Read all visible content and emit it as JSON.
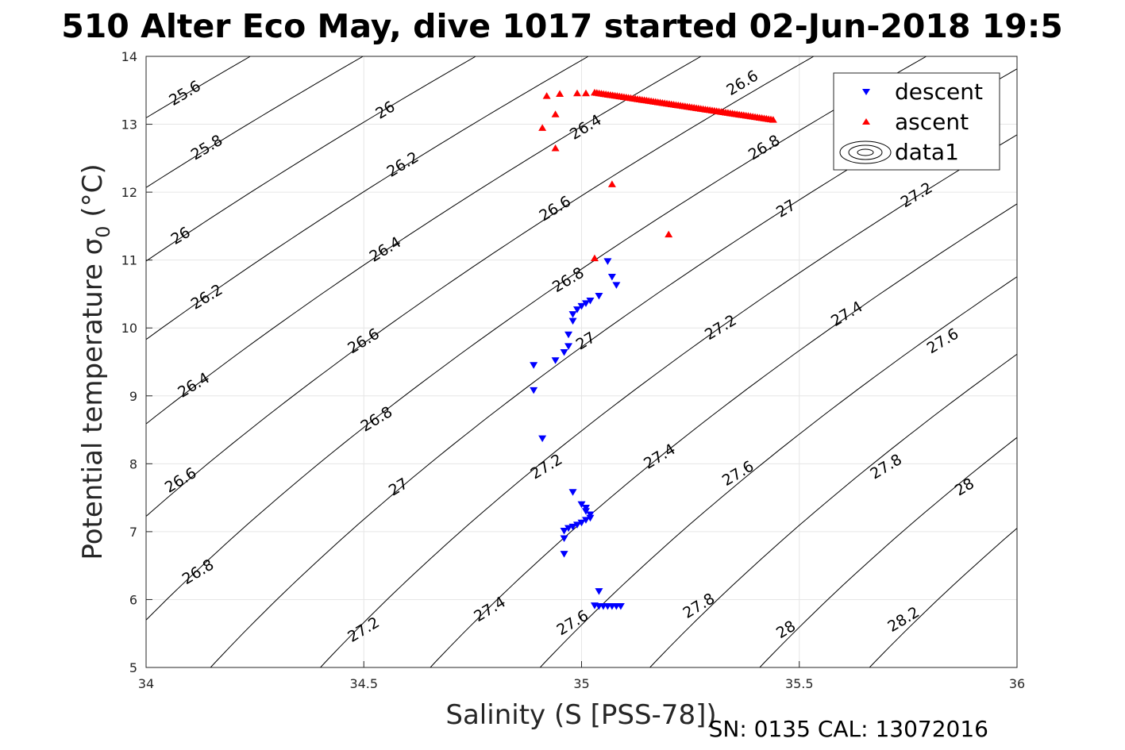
{
  "chart_data": {
    "type": "scatter",
    "title": "510 Alter Eco May, dive 1017 started 02-Jun-2018 19:5",
    "xlabel": "Salinity (S [PSS-78])",
    "ylabel": "Potential temperature σ₀ (°C)",
    "ylabel_main": "Potential temperature σ",
    "ylabel_sub": "0",
    "ylabel_unit": " (°C)",
    "xlim": [
      34,
      36
    ],
    "ylim": [
      5,
      14
    ],
    "x_ticks": [
      34,
      34.5,
      35,
      35.5,
      36
    ],
    "x_tick_labels": [
      "34",
      "34.5",
      "35",
      "35.5",
      "36"
    ],
    "y_ticks": [
      5,
      6,
      7,
      8,
      9,
      10,
      11,
      12,
      13,
      14
    ],
    "y_tick_labels": [
      "5",
      "6",
      "7",
      "8",
      "9",
      "10",
      "11",
      "12",
      "13",
      "14"
    ],
    "grid": true,
    "legend_position": "top-right",
    "footer": "SN: 0135  CAL: 13072016",
    "series": [
      {
        "name": "descent",
        "marker": "triangle-down",
        "color": "#0000ff",
        "points": [
          [
            35.06,
            10.98
          ],
          [
            35.07,
            10.75
          ],
          [
            35.08,
            10.63
          ],
          [
            35.04,
            10.47
          ],
          [
            35.02,
            10.4
          ],
          [
            35.01,
            10.36
          ],
          [
            35.0,
            10.32
          ],
          [
            34.99,
            10.27
          ],
          [
            34.98,
            10.2
          ],
          [
            34.98,
            10.1
          ],
          [
            34.97,
            9.9
          ],
          [
            34.97,
            9.73
          ],
          [
            34.96,
            9.64
          ],
          [
            34.94,
            9.52
          ],
          [
            34.89,
            9.45
          ],
          [
            34.89,
            9.08
          ],
          [
            34.91,
            8.37
          ],
          [
            34.98,
            7.58
          ],
          [
            35.0,
            7.4
          ],
          [
            35.01,
            7.35
          ],
          [
            35.01,
            7.3
          ],
          [
            35.02,
            7.25
          ],
          [
            35.02,
            7.2
          ],
          [
            35.01,
            7.17
          ],
          [
            35.0,
            7.13
          ],
          [
            34.99,
            7.1
          ],
          [
            34.98,
            7.07
          ],
          [
            34.97,
            7.05
          ],
          [
            34.96,
            7.01
          ],
          [
            34.96,
            6.9
          ],
          [
            34.96,
            6.67
          ],
          [
            35.04,
            6.12
          ],
          [
            35.03,
            5.91
          ],
          [
            35.04,
            5.9
          ],
          [
            35.05,
            5.9
          ],
          [
            35.06,
            5.9
          ],
          [
            35.07,
            5.9
          ],
          [
            35.08,
            5.9
          ],
          [
            35.09,
            5.9
          ]
        ]
      },
      {
        "name": "ascent",
        "marker": "triangle-up",
        "color": "#ff0000",
        "points": [
          [
            34.92,
            13.42
          ],
          [
            34.94,
            13.15
          ],
          [
            34.91,
            12.95
          ],
          [
            34.94,
            12.65
          ],
          [
            34.95,
            13.45
          ],
          [
            34.99,
            13.46
          ],
          [
            35.01,
            13.46
          ],
          [
            35.07,
            12.12
          ],
          [
            35.2,
            11.38
          ],
          [
            35.03,
            11.03
          ]
        ],
        "line_segment": {
          "from": [
            35.03,
            13.47
          ],
          "to": [
            35.44,
            13.07
          ],
          "count": 80
        }
      },
      {
        "name": "data1",
        "type": "contour",
        "color": "#000000",
        "levels": [
          25.6,
          25.8,
          26,
          26.2,
          26.4,
          26.6,
          26.8,
          27,
          27.2,
          27.4,
          27.6,
          27.8,
          28,
          28.2
        ],
        "labels": [
          {
            "text": "25.6",
            "x": 34.09,
            "y": 13.45
          },
          {
            "text": "25.8",
            "x": 34.14,
            "y": 12.65
          },
          {
            "text": "26",
            "x": 34.08,
            "y": 11.35
          },
          {
            "text": "26.2",
            "x": 34.14,
            "y": 10.45
          },
          {
            "text": "26.4",
            "x": 34.11,
            "y": 9.15
          },
          {
            "text": "26.6",
            "x": 34.08,
            "y": 7.75
          },
          {
            "text": "26.8",
            "x": 34.12,
            "y": 6.4
          },
          {
            "text": "26",
            "x": 34.55,
            "y": 13.2
          },
          {
            "text": "26.2",
            "x": 34.59,
            "y": 12.4
          },
          {
            "text": "26.4",
            "x": 34.55,
            "y": 11.15
          },
          {
            "text": "26.6",
            "x": 34.5,
            "y": 9.8
          },
          {
            "text": "26.8",
            "x": 34.53,
            "y": 8.65
          },
          {
            "text": "27",
            "x": 34.58,
            "y": 7.65
          },
          {
            "text": "27.2",
            "x": 34.5,
            "y": 5.55
          },
          {
            "text": "26.4",
            "x": 35.01,
            "y": 12.95
          },
          {
            "text": "26.6",
            "x": 34.94,
            "y": 11.75
          },
          {
            "text": "26.8",
            "x": 34.97,
            "y": 10.7
          },
          {
            "text": "27",
            "x": 35.01,
            "y": 9.8
          },
          {
            "text": "27.2",
            "x": 34.92,
            "y": 7.95
          },
          {
            "text": "27.4",
            "x": 34.79,
            "y": 5.85
          },
          {
            "text": "27.6",
            "x": 34.98,
            "y": 5.65
          },
          {
            "text": "26.6",
            "x": 35.37,
            "y": 13.6
          },
          {
            "text": "26.8",
            "x": 35.42,
            "y": 12.65
          },
          {
            "text": "27",
            "x": 35.47,
            "y": 11.75
          },
          {
            "text": "27.2",
            "x": 35.32,
            "y": 10.0
          },
          {
            "text": "27.4",
            "x": 35.18,
            "y": 8.1
          },
          {
            "text": "27.6",
            "x": 35.36,
            "y": 7.85
          },
          {
            "text": "27.8",
            "x": 35.27,
            "y": 5.9
          },
          {
            "text": "28",
            "x": 35.47,
            "y": 5.55
          },
          {
            "text": "27.2",
            "x": 35.77,
            "y": 11.95
          },
          {
            "text": "27.4",
            "x": 35.61,
            "y": 10.2
          },
          {
            "text": "27.6",
            "x": 35.83,
            "y": 9.8
          },
          {
            "text": "27.8",
            "x": 35.7,
            "y": 7.95
          },
          {
            "text": "28",
            "x": 35.88,
            "y": 7.65
          },
          {
            "text": "28.2",
            "x": 35.74,
            "y": 5.7
          }
        ]
      }
    ]
  }
}
